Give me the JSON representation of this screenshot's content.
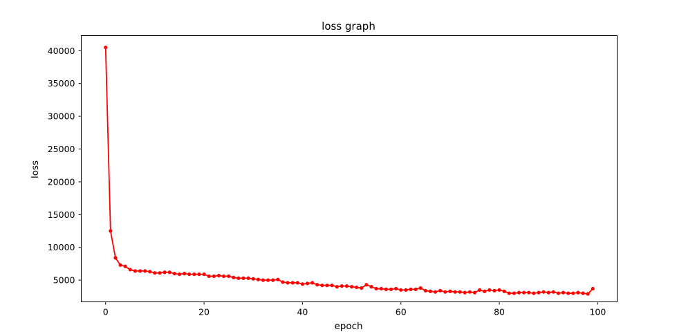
{
  "chart_data": {
    "type": "line",
    "title": "loss graph",
    "xlabel": "epoch",
    "ylabel": "loss",
    "xlim": [
      -4.95,
      103.95
    ],
    "ylim": [
      1690,
      42300
    ],
    "x_ticks": [
      0,
      20,
      40,
      60,
      80,
      100
    ],
    "y_ticks": [
      5000,
      10000,
      15000,
      20000,
      25000,
      30000,
      35000,
      40000
    ],
    "grid": false,
    "legend": "none",
    "series": [
      {
        "color": "#ff0000",
        "marker": "circle",
        "x": [
          0,
          1,
          2,
          3,
          4,
          5,
          6,
          7,
          8,
          9,
          10,
          11,
          12,
          13,
          14,
          15,
          16,
          17,
          18,
          19,
          20,
          21,
          22,
          23,
          24,
          25,
          26,
          27,
          28,
          29,
          30,
          31,
          32,
          33,
          34,
          35,
          36,
          37,
          38,
          39,
          40,
          41,
          42,
          43,
          44,
          45,
          46,
          47,
          48,
          49,
          50,
          51,
          52,
          53,
          54,
          55,
          56,
          57,
          58,
          59,
          60,
          61,
          62,
          63,
          64,
          65,
          66,
          67,
          68,
          69,
          70,
          71,
          72,
          73,
          74,
          75,
          76,
          77,
          78,
          79,
          80,
          81,
          82,
          83,
          84,
          85,
          86,
          87,
          88,
          89,
          90,
          91,
          92,
          93,
          94,
          95,
          96,
          97,
          98,
          99
        ],
        "y": [
          40500,
          12500,
          8400,
          7300,
          7100,
          6600,
          6400,
          6400,
          6400,
          6300,
          6100,
          6100,
          6200,
          6200,
          6000,
          5900,
          6000,
          5900,
          5900,
          5900,
          5900,
          5600,
          5600,
          5700,
          5600,
          5600,
          5400,
          5300,
          5300,
          5300,
          5200,
          5100,
          5000,
          5000,
          5000,
          5100,
          4700,
          4600,
          4600,
          4600,
          4400,
          4500,
          4600,
          4300,
          4200,
          4200,
          4200,
          4000,
          4100,
          4100,
          4000,
          3900,
          3800,
          4300,
          4000,
          3700,
          3700,
          3600,
          3600,
          3700,
          3500,
          3500,
          3600,
          3600,
          3800,
          3400,
          3300,
          3200,
          3400,
          3200,
          3300,
          3200,
          3200,
          3100,
          3200,
          3100,
          3500,
          3300,
          3500,
          3400,
          3500,
          3300,
          3000,
          3000,
          3100,
          3100,
          3100,
          3000,
          3100,
          3200,
          3100,
          3200,
          3000,
          3100,
          3000,
          3000,
          3100,
          3000,
          2900,
          3700
        ]
      }
    ]
  }
}
